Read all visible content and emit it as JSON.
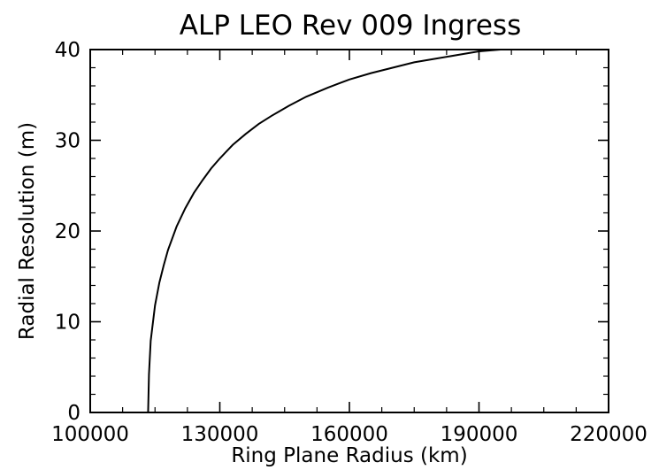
{
  "chart_data": {
    "type": "line",
    "title": "ALP LEO Rev 009 Ingress",
    "xlabel": "Ring Plane Radius (km)",
    "ylabel": "Radial Resolution (m)",
    "xlim": [
      100000,
      220000
    ],
    "ylim": [
      0,
      40
    ],
    "xticks": [
      100000,
      130000,
      160000,
      190000,
      220000
    ],
    "yticks": [
      0,
      10,
      20,
      30,
      40
    ],
    "x_minor_step": 7500,
    "y_minor_step": 2,
    "grid": false,
    "legend": "none",
    "line_color": "#000000",
    "series": [
      {
        "x": [
          113400,
          113600,
          114000,
          115000,
          116000,
          117000,
          118000,
          120000,
          122000,
          124000,
          126000,
          128000,
          130000,
          133000,
          136000,
          139000,
          142000,
          146000,
          150000,
          155000,
          160000,
          165000,
          170000,
          175000,
          180000,
          185000,
          190000,
          195000,
          200000,
          205000
        ],
        "y": [
          0,
          4.2,
          7.9,
          11.8,
          14.3,
          16.2,
          17.9,
          20.5,
          22.5,
          24.2,
          25.6,
          26.9,
          28.0,
          29.5,
          30.7,
          31.8,
          32.7,
          33.8,
          34.8,
          35.8,
          36.7,
          37.4,
          38.0,
          38.6,
          39.0,
          39.4,
          39.8,
          40.1,
          40.4,
          40.6
        ]
      }
    ]
  }
}
